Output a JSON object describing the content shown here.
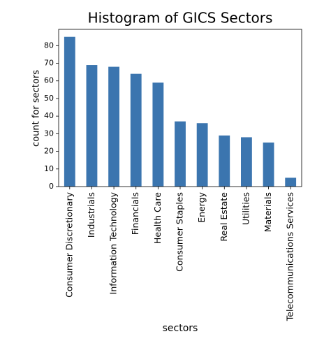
{
  "chart_data": {
    "type": "bar",
    "title": "Histogram of GICS Sectors",
    "x_label": "sectors",
    "y_label": "count for sectors",
    "categories": [
      "Consumer Discretionary",
      "Industrials",
      "Information Technology",
      "Financials",
      "Health Care",
      "Consumer Staples",
      "Energy",
      "Real Estate",
      "Utilities",
      "Materials",
      "Telecommunications Services"
    ],
    "values": [
      85,
      69,
      68,
      64,
      59,
      37,
      36,
      29,
      28,
      25,
      5
    ],
    "color": "#3b75af",
    "ylim": [
      0,
      89.25
    ],
    "yticks": [
      0,
      10,
      20,
      30,
      40,
      50,
      60,
      70,
      80
    ],
    "grid": false
  }
}
